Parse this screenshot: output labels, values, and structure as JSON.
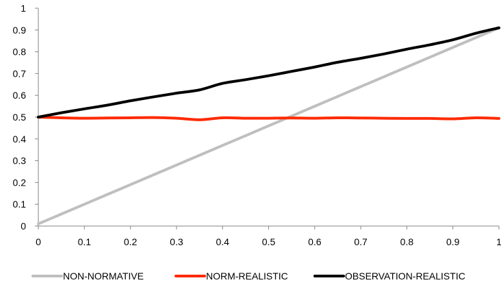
{
  "chart_data": {
    "type": "line",
    "title": "",
    "xlabel": "",
    "ylabel": "",
    "xlim": [
      0,
      1
    ],
    "ylim": [
      0,
      1
    ],
    "x_ticks": [
      0,
      0.1,
      0.2,
      0.3,
      0.4,
      0.5,
      0.6,
      0.7,
      0.8,
      0.9,
      1
    ],
    "y_ticks": [
      0,
      0.1,
      0.2,
      0.3,
      0.4,
      0.5,
      0.6,
      0.7,
      0.8,
      0.9,
      1
    ],
    "grid": false,
    "legend": "bottom",
    "series": [
      {
        "name": "NON-NORMATIVE",
        "color": "#bfbfbf",
        "x": [
          0,
          0.05,
          0.1,
          0.15,
          0.2,
          0.25,
          0.3,
          0.35,
          0.4,
          0.45,
          0.5,
          0.55,
          0.6,
          0.65,
          0.7,
          0.75,
          0.8,
          0.85,
          0.9,
          0.95,
          1
        ],
        "y": [
          0.01,
          0.055,
          0.1,
          0.145,
          0.19,
          0.235,
          0.28,
          0.325,
          0.37,
          0.415,
          0.46,
          0.505,
          0.55,
          0.595,
          0.64,
          0.685,
          0.73,
          0.775,
          0.82,
          0.865,
          0.91
        ]
      },
      {
        "name": "NORM-REALISTIC",
        "color": "#ff2a00",
        "x": [
          0,
          0.05,
          0.1,
          0.15,
          0.2,
          0.25,
          0.3,
          0.35,
          0.4,
          0.45,
          0.5,
          0.55,
          0.6,
          0.65,
          0.7,
          0.75,
          0.8,
          0.85,
          0.9,
          0.95,
          1
        ],
        "y": [
          0.5,
          0.497,
          0.495,
          0.496,
          0.497,
          0.498,
          0.495,
          0.488,
          0.497,
          0.495,
          0.495,
          0.496,
          0.495,
          0.497,
          0.496,
          0.495,
          0.494,
          0.494,
          0.492,
          0.497,
          0.494
        ]
      },
      {
        "name": "OBSERVATION-REALISTIC",
        "color": "#000000",
        "x": [
          0,
          0.05,
          0.1,
          0.15,
          0.2,
          0.25,
          0.3,
          0.35,
          0.4,
          0.45,
          0.5,
          0.55,
          0.6,
          0.65,
          0.7,
          0.75,
          0.8,
          0.85,
          0.9,
          0.95,
          1
        ],
        "y": [
          0.5,
          0.52,
          0.538,
          0.555,
          0.575,
          0.593,
          0.61,
          0.625,
          0.655,
          0.672,
          0.69,
          0.71,
          0.73,
          0.752,
          0.77,
          0.79,
          0.812,
          0.832,
          0.855,
          0.885,
          0.91
        ]
      }
    ]
  }
}
